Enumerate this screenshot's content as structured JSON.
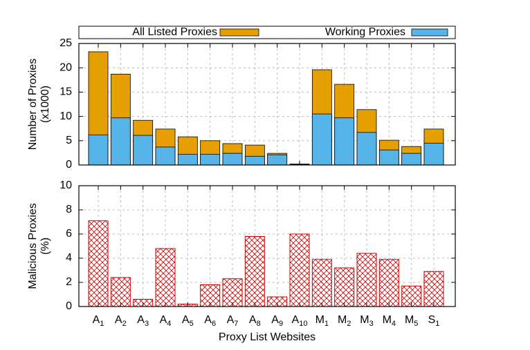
{
  "chart_data": [
    {
      "type": "bar",
      "ylabel": [
        "Number of Proxies",
        "(x1000)"
      ],
      "ylim": [
        0,
        25
      ],
      "yticks": [
        0,
        5,
        10,
        15,
        20,
        25
      ],
      "grid": true,
      "legend": "top",
      "series": [
        {
          "name": "All Listed Proxies",
          "color": "#e69f00",
          "values": [
            23.3,
            18.7,
            9.2,
            7.4,
            5.8,
            5.0,
            4.4,
            4.1,
            2.4,
            0.2,
            19.6,
            16.6,
            11.4,
            5.1,
            3.8,
            7.4
          ]
        },
        {
          "name": "Working Proxies",
          "color": "#56b4e9",
          "values": [
            6.2,
            9.7,
            6.1,
            3.7,
            2.2,
            2.2,
            2.4,
            1.8,
            2.1,
            0.1,
            10.5,
            9.7,
            6.7,
            3.1,
            2.4,
            4.5
          ]
        }
      ]
    },
    {
      "type": "bar",
      "ylabel": [
        "Malicious Proxies",
        "(%)"
      ],
      "xlabel": "Proxy List Websites",
      "categories": [
        "A1",
        "A2",
        "A3",
        "A4",
        "A5",
        "A6",
        "A7",
        "A8",
        "A9",
        "A10",
        "M1",
        "M2",
        "M3",
        "M4",
        "M5",
        "S1"
      ],
      "ylim": [
        0,
        10
      ],
      "yticks": [
        0,
        2,
        4,
        6,
        8,
        10
      ],
      "grid": true,
      "color": "#cc0000",
      "values": [
        7.1,
        2.4,
        0.6,
        4.8,
        0.2,
        1.8,
        2.3,
        5.8,
        0.8,
        6.0,
        3.9,
        3.2,
        4.4,
        3.9,
        1.7,
        2.9
      ]
    }
  ]
}
